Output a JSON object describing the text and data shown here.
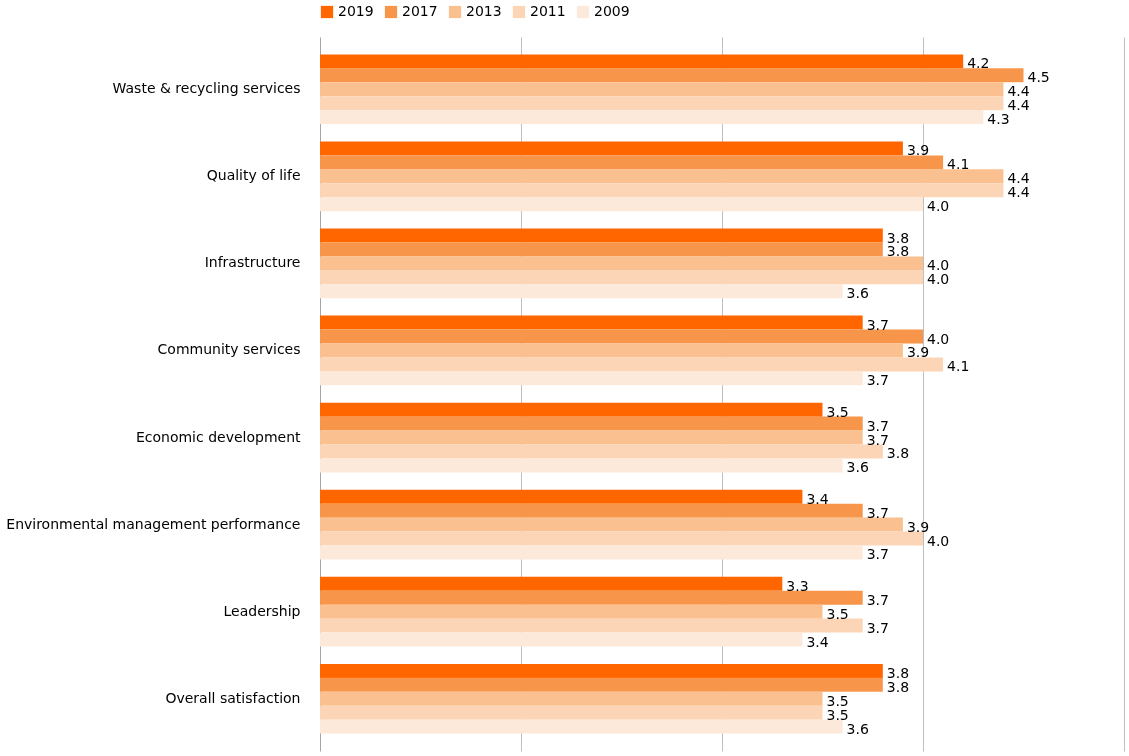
{
  "chart_data": {
    "type": "bar",
    "orientation": "horizontal",
    "categories": [
      "Waste & recycling services",
      "Quality of life",
      "Infrastructure",
      "Community services",
      "Economic development",
      "Environmental management performance",
      "Leadership",
      "Overall satisfaction"
    ],
    "series": [
      {
        "name": "2019",
        "color": "#ff6600",
        "values": [
          4.2,
          3.9,
          3.8,
          3.7,
          3.5,
          3.4,
          3.3,
          3.8
        ],
        "value_labels": [
          "4.2",
          "3.9",
          "3.8",
          "3.7",
          "3.5",
          "3.4",
          "3.3",
          "3.8"
        ]
      },
      {
        "name": "2017",
        "color": "#f7964a",
        "values": [
          4.5,
          4.1,
          3.8,
          4.0,
          3.7,
          3.7,
          3.7,
          3.8
        ],
        "value_labels": [
          "4.5",
          "4.1",
          "3.8",
          "4.0",
          "3.7",
          "3.7",
          "3.7",
          "3.8"
        ]
      },
      {
        "name": "2013",
        "color": "#fac090",
        "values": [
          4.4,
          4.4,
          4.0,
          3.9,
          3.7,
          3.9,
          3.5,
          3.5
        ],
        "value_labels": [
          "4.4",
          "4.4",
          "4.0",
          "3.9",
          "3.7",
          "3.9",
          "3.5",
          "3.5"
        ]
      },
      {
        "name": "2011",
        "color": "#fbd5b5",
        "values": [
          4.4,
          4.4,
          4.0,
          4.1,
          3.8,
          4.0,
          3.7,
          3.5
        ],
        "value_labels": [
          "4.4",
          "4.4",
          "4.0",
          "4.1",
          "3.8",
          "4.0",
          "3.7",
          "3.5"
        ]
      },
      {
        "name": "2009",
        "color": "#fde9d9",
        "values": [
          4.3,
          4.0,
          3.6,
          3.7,
          3.6,
          3.7,
          3.4,
          3.6
        ],
        "value_labels": [
          "4.3",
          "4.0",
          "3.6",
          "3.7",
          "3.6",
          "3.7",
          "3.4",
          "3.6"
        ]
      }
    ],
    "xlim": [
      1,
      5
    ],
    "xticks": [
      {
        "value": 2,
        "label": null
      },
      {
        "value": 3,
        "label": null
      },
      {
        "value": 4,
        "label": null
      },
      {
        "value": 5,
        "label": null
      }
    ],
    "grid": "x",
    "legend": "top",
    "tick_labels": "y"
  }
}
